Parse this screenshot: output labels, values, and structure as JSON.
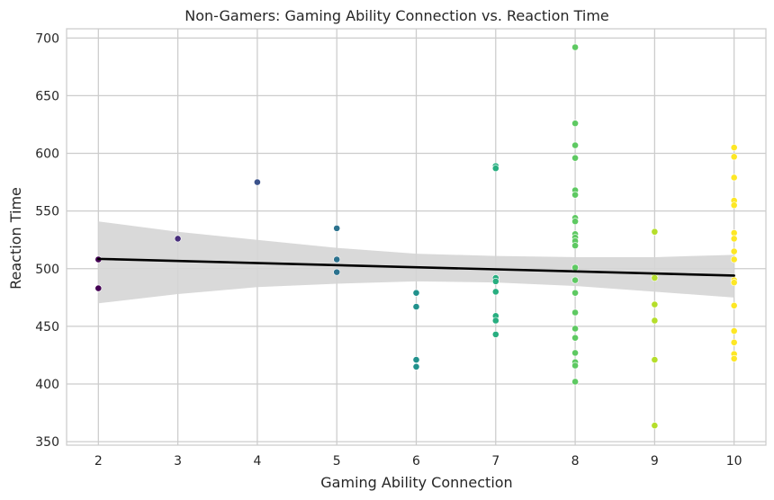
{
  "chart_data": {
    "type": "scatter",
    "title": "Non-Gamers: Gaming Ability Connection vs. Reaction Time",
    "xlabel": "Gaming Ability Connection",
    "ylabel": "Reaction Time",
    "xlim": [
      1.6,
      10.4
    ],
    "ylim": [
      347,
      708
    ],
    "xticks": [
      "2",
      "3",
      "4",
      "5",
      "6",
      "7",
      "8",
      "9",
      "10"
    ],
    "yticks": [
      "350",
      "400",
      "450",
      "500",
      "550",
      "600",
      "650",
      "700"
    ],
    "grid": true,
    "colormap": "viridis",
    "points": [
      {
        "x": 2,
        "y": 508,
        "color": "#440154"
      },
      {
        "x": 2,
        "y": 483,
        "color": "#440154"
      },
      {
        "x": 3,
        "y": 526,
        "color": "#472d7b"
      },
      {
        "x": 4,
        "y": 575,
        "color": "#3b528b"
      },
      {
        "x": 5,
        "y": 535,
        "color": "#2c728e"
      },
      {
        "x": 5,
        "y": 508,
        "color": "#2c728e"
      },
      {
        "x": 5,
        "y": 497,
        "color": "#2c728e"
      },
      {
        "x": 6,
        "y": 479,
        "color": "#21918c"
      },
      {
        "x": 6,
        "y": 467,
        "color": "#21918c"
      },
      {
        "x": 6,
        "y": 421,
        "color": "#21918c"
      },
      {
        "x": 6,
        "y": 415,
        "color": "#21918c"
      },
      {
        "x": 7,
        "y": 589,
        "color": "#28ae80"
      },
      {
        "x": 7,
        "y": 587,
        "color": "#28ae80"
      },
      {
        "x": 7,
        "y": 492,
        "color": "#28ae80"
      },
      {
        "x": 7,
        "y": 489,
        "color": "#28ae80"
      },
      {
        "x": 7,
        "y": 480,
        "color": "#28ae80"
      },
      {
        "x": 7,
        "y": 459,
        "color": "#28ae80"
      },
      {
        "x": 7,
        "y": 455,
        "color": "#28ae80"
      },
      {
        "x": 7,
        "y": 443,
        "color": "#28ae80"
      },
      {
        "x": 8,
        "y": 692,
        "color": "#5ec962"
      },
      {
        "x": 8,
        "y": 626,
        "color": "#5ec962"
      },
      {
        "x": 8,
        "y": 607,
        "color": "#5ec962"
      },
      {
        "x": 8,
        "y": 596,
        "color": "#5ec962"
      },
      {
        "x": 8,
        "y": 568,
        "color": "#5ec962"
      },
      {
        "x": 8,
        "y": 564,
        "color": "#5ec962"
      },
      {
        "x": 8,
        "y": 544,
        "color": "#5ec962"
      },
      {
        "x": 8,
        "y": 541,
        "color": "#5ec962"
      },
      {
        "x": 8,
        "y": 530,
        "color": "#5ec962"
      },
      {
        "x": 8,
        "y": 527,
        "color": "#5ec962"
      },
      {
        "x": 8,
        "y": 524,
        "color": "#5ec962"
      },
      {
        "x": 8,
        "y": 520,
        "color": "#5ec962"
      },
      {
        "x": 8,
        "y": 501,
        "color": "#5ec962"
      },
      {
        "x": 8,
        "y": 490,
        "color": "#5ec962"
      },
      {
        "x": 8,
        "y": 479,
        "color": "#5ec962"
      },
      {
        "x": 8,
        "y": 462,
        "color": "#5ec962"
      },
      {
        "x": 8,
        "y": 448,
        "color": "#5ec962"
      },
      {
        "x": 8,
        "y": 440,
        "color": "#5ec962"
      },
      {
        "x": 8,
        "y": 427,
        "color": "#5ec962"
      },
      {
        "x": 8,
        "y": 419,
        "color": "#5ec962"
      },
      {
        "x": 8,
        "y": 416,
        "color": "#5ec962"
      },
      {
        "x": 8,
        "y": 402,
        "color": "#5ec962"
      },
      {
        "x": 9,
        "y": 532,
        "color": "#b5de2b"
      },
      {
        "x": 9,
        "y": 494,
        "color": "#b5de2b"
      },
      {
        "x": 9,
        "y": 492,
        "color": "#b5de2b"
      },
      {
        "x": 9,
        "y": 469,
        "color": "#b5de2b"
      },
      {
        "x": 9,
        "y": 455,
        "color": "#b5de2b"
      },
      {
        "x": 9,
        "y": 421,
        "color": "#b5de2b"
      },
      {
        "x": 9,
        "y": 364,
        "color": "#b5de2b"
      },
      {
        "x": 10,
        "y": 605,
        "color": "#fde725"
      },
      {
        "x": 10,
        "y": 597,
        "color": "#fde725"
      },
      {
        "x": 10,
        "y": 579,
        "color": "#fde725"
      },
      {
        "x": 10,
        "y": 559,
        "color": "#fde725"
      },
      {
        "x": 10,
        "y": 555,
        "color": "#fde725"
      },
      {
        "x": 10,
        "y": 531,
        "color": "#fde725"
      },
      {
        "x": 10,
        "y": 526,
        "color": "#fde725"
      },
      {
        "x": 10,
        "y": 515,
        "color": "#fde725"
      },
      {
        "x": 10,
        "y": 508,
        "color": "#fde725"
      },
      {
        "x": 10,
        "y": 490,
        "color": "#fde725"
      },
      {
        "x": 10,
        "y": 488,
        "color": "#fde725"
      },
      {
        "x": 10,
        "y": 468,
        "color": "#fde725"
      },
      {
        "x": 10,
        "y": 446,
        "color": "#fde725"
      },
      {
        "x": 10,
        "y": 436,
        "color": "#fde725"
      },
      {
        "x": 10,
        "y": 426,
        "color": "#fde725"
      },
      {
        "x": 10,
        "y": 422,
        "color": "#fde725"
      }
    ],
    "regression": {
      "x": [
        2,
        10
      ],
      "y": [
        508.5,
        494
      ],
      "color": "#000000"
    },
    "confidence_band": {
      "x": [
        2,
        3,
        4,
        5,
        6,
        7,
        8,
        9,
        10
      ],
      "upper": [
        541,
        532,
        525,
        518,
        513,
        511,
        510,
        510,
        512
      ],
      "lower": [
        470,
        478,
        484,
        487,
        489,
        488,
        485,
        480,
        475
      ],
      "color": "#d5d5d5"
    },
    "colors": {
      "background": "#ffffff",
      "grid": "#cccccc",
      "axes_edge": "#cccccc",
      "text": "#262626"
    }
  }
}
